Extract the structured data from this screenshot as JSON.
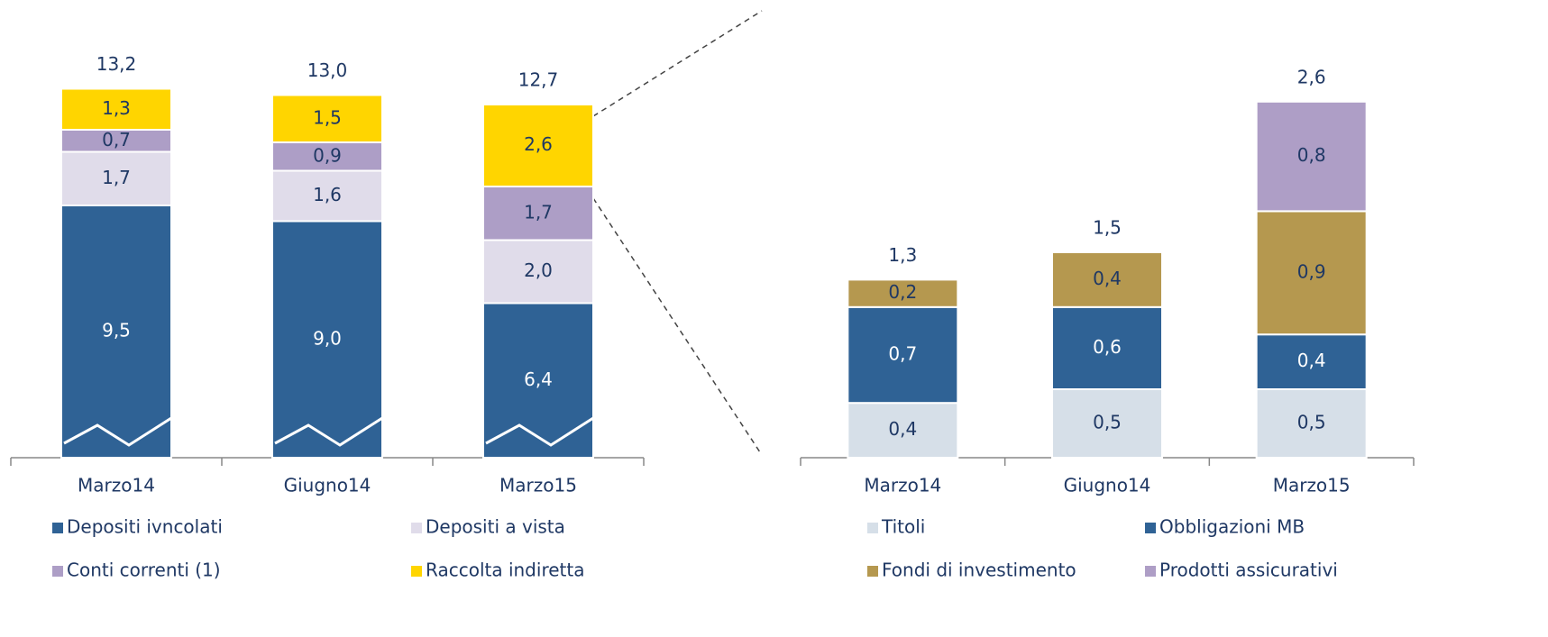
{
  "chart_data": [
    {
      "type": "bar",
      "stacked": true,
      "categories": [
        "Marzo14",
        "Giugno14",
        "Marzo15"
      ],
      "series": [
        {
          "name": "Depositi ivncolati",
          "color": "#2f6295",
          "values": [
            9.5,
            9.0,
            6.4
          ],
          "value_labels": [
            "9,5",
            "9,0",
            "6,4"
          ]
        },
        {
          "name": "Depositi a vista",
          "color": "#e0dcea",
          "values": [
            1.7,
            1.6,
            2.0
          ],
          "value_labels": [
            "1,7",
            "1,6",
            "2,0"
          ]
        },
        {
          "name": "Conti correnti (1)",
          "color": "#ad9ec6",
          "values": [
            0.7,
            0.9,
            1.7
          ],
          "value_labels": [
            "0,7",
            "0,9",
            "1,7"
          ]
        },
        {
          "name": "Raccolta indiretta",
          "color": "#ffd500",
          "values": [
            1.3,
            1.5,
            2.6
          ],
          "value_labels": [
            "1,3",
            "1,5",
            "2,6"
          ]
        }
      ],
      "totals": [
        13.2,
        13.0,
        12.7
      ],
      "total_labels": [
        "13,2",
        "13,0",
        "12,7"
      ]
    },
    {
      "type": "bar",
      "stacked": true,
      "categories": [
        "Marzo14",
        "Giugno14",
        "Marzo15"
      ],
      "series": [
        {
          "name": "Titoli",
          "color": "#d6dfe8",
          "values": [
            0.4,
            0.5,
            0.5
          ],
          "value_labels": [
            "0,4",
            "0,5",
            "0,5"
          ]
        },
        {
          "name": "Obbligazioni MB",
          "color": "#2f6295",
          "values": [
            0.7,
            0.6,
            0.4
          ],
          "value_labels": [
            "0,7",
            "0,6",
            "0,4"
          ]
        },
        {
          "name": "Fondi di investimento",
          "color": "#b5984f",
          "values": [
            0.2,
            0.4,
            0.9
          ],
          "value_labels": [
            "0,2",
            "0,4",
            "0,9"
          ]
        },
        {
          "name": "Prodotti assicurativi",
          "color": "#ae9ec6",
          "values": [
            0.0,
            0.0,
            0.8
          ],
          "value_labels": [
            "",
            "",
            "0,8"
          ]
        }
      ],
      "totals": [
        1.3,
        1.5,
        2.6
      ],
      "total_labels": [
        "1,3",
        "1,5",
        "2,6"
      ]
    }
  ]
}
